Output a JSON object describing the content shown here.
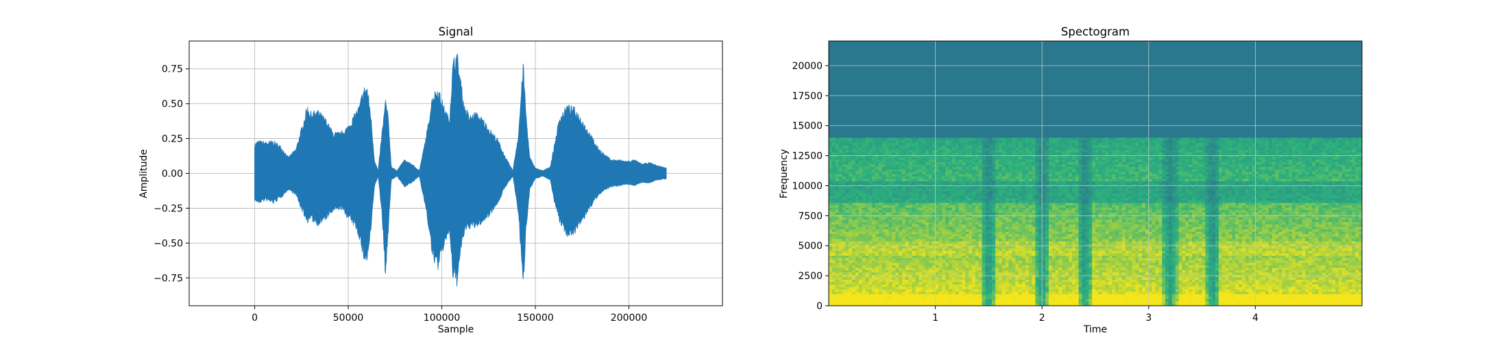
{
  "chart_data": [
    {
      "type": "line",
      "title": "Signal",
      "xlabel": "Sample",
      "ylabel": "Amplitude",
      "xlim": [
        -35000,
        250000
      ],
      "ylim": [
        -0.95,
        0.95
      ],
      "xticks": [
        0,
        50000,
        100000,
        150000,
        200000
      ],
      "xtick_labels": [
        "0",
        "50000",
        "100000",
        "150000",
        "200000"
      ],
      "yticks": [
        -0.75,
        -0.5,
        -0.25,
        0.0,
        0.25,
        0.5,
        0.75
      ],
      "ytick_labels": [
        "−0.75",
        "−0.50",
        "−0.25",
        "0.00",
        "0.25",
        "0.50",
        "0.75"
      ],
      "grid": true,
      "color": "#1f77b4",
      "envelope": {
        "x": [
          0,
          2000,
          6000,
          10000,
          14000,
          18000,
          22000,
          26000,
          28000,
          30000,
          34000,
          38000,
          42000,
          46000,
          50000,
          54000,
          56000,
          58000,
          60000,
          62000,
          64000,
          66000,
          68000,
          70000,
          71500,
          73000,
          76000,
          80000,
          84000,
          88000,
          92000,
          95000,
          98000,
          101000,
          104000,
          106000,
          108000,
          110000,
          112000,
          115000,
          118000,
          122000,
          126000,
          130000,
          134000,
          138000,
          141000,
          143500,
          145000,
          147000,
          150000,
          154000,
          158000,
          160000,
          163000,
          167000,
          171000,
          175000,
          179000,
          183000,
          187000,
          191000,
          195000,
          199000,
          203000,
          207000,
          211000,
          215000,
          220000
        ],
        "upper": [
          0.22,
          0.24,
          0.23,
          0.24,
          0.2,
          0.12,
          0.18,
          0.38,
          0.5,
          0.45,
          0.46,
          0.4,
          0.3,
          0.3,
          0.35,
          0.45,
          0.5,
          0.62,
          0.65,
          0.45,
          0.1,
          0.02,
          0.3,
          0.55,
          0.4,
          0.05,
          0.02,
          0.1,
          0.07,
          0.02,
          0.3,
          0.58,
          0.63,
          0.5,
          0.4,
          0.82,
          0.9,
          0.7,
          0.5,
          0.42,
          0.45,
          0.4,
          0.32,
          0.25,
          0.12,
          0.02,
          0.3,
          0.82,
          0.45,
          0.12,
          0.04,
          0.02,
          0.05,
          0.2,
          0.42,
          0.5,
          0.48,
          0.4,
          0.3,
          0.2,
          0.14,
          0.1,
          0.1,
          0.09,
          0.1,
          0.07,
          0.08,
          0.06,
          0.04
        ],
        "lower": [
          -0.2,
          -0.22,
          -0.2,
          -0.22,
          -0.18,
          -0.12,
          -0.16,
          -0.3,
          -0.36,
          -0.34,
          -0.38,
          -0.34,
          -0.28,
          -0.26,
          -0.33,
          -0.4,
          -0.48,
          -0.62,
          -0.66,
          -0.45,
          -0.1,
          -0.02,
          -0.3,
          -0.78,
          -0.4,
          -0.05,
          -0.02,
          -0.1,
          -0.07,
          -0.02,
          -0.3,
          -0.62,
          -0.7,
          -0.55,
          -0.42,
          -0.78,
          -0.82,
          -0.6,
          -0.44,
          -0.4,
          -0.4,
          -0.36,
          -0.3,
          -0.22,
          -0.1,
          -0.02,
          -0.3,
          -0.86,
          -0.42,
          -0.12,
          -0.04,
          -0.02,
          -0.05,
          -0.2,
          -0.36,
          -0.46,
          -0.44,
          -0.36,
          -0.26,
          -0.18,
          -0.12,
          -0.1,
          -0.09,
          -0.08,
          -0.09,
          -0.07,
          -0.07,
          -0.05,
          -0.04
        ]
      }
    },
    {
      "type": "heatmap",
      "title": "Spectogram",
      "xlabel": "Time",
      "ylabel": "Frequency",
      "xlim": [
        0,
        5.0
      ],
      "ylim": [
        0,
        22050
      ],
      "xticks": [
        1,
        2,
        3,
        4
      ],
      "xtick_labels": [
        "1",
        "2",
        "3",
        "4"
      ],
      "yticks": [
        0,
        2500,
        5000,
        7500,
        10000,
        12500,
        15000,
        17500,
        20000
      ],
      "ytick_labels": [
        "0",
        "2500",
        "5000",
        "7500",
        "10000",
        "12500",
        "15000",
        "17500",
        "20000"
      ],
      "grid": true,
      "colormap": "viridis",
      "cutoff_frequency": 14000,
      "quiet_times": [
        1.5,
        2.0,
        2.4,
        3.2,
        3.6
      ],
      "colors": {
        "high": "#f5e51b",
        "mid": "#2db27d",
        "low": "#21908d",
        "floor": "#2a788e"
      }
    }
  ]
}
